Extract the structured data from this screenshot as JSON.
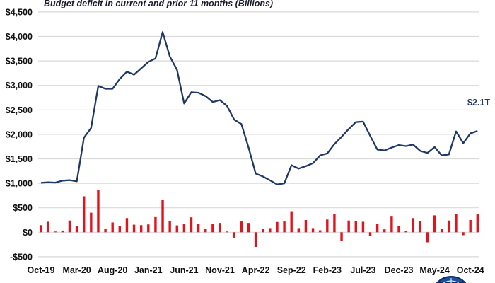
{
  "chart_data": {
    "type": "line+bar",
    "title": "Budget deficit in current and prior 11 months (Billions)",
    "xlabel": "",
    "ylabel": "",
    "ylim": [
      -500,
      4500
    ],
    "yticks": [
      -500,
      0,
      500,
      1000,
      1500,
      2000,
      2500,
      3000,
      3500,
      4000,
      4500
    ],
    "ytick_labels": [
      "-$500",
      "$0",
      "$500",
      "$1,000",
      "$1,500",
      "$2,000",
      "$2,500",
      "$3,000",
      "$3,500",
      "$4,000",
      "$4,500"
    ],
    "grid": true,
    "x_start": "Oct-19",
    "x_end": "Nov-24",
    "xtick_labels": [
      "Oct-19",
      "Mar-20",
      "Aug-20",
      "Jan-21",
      "Jun-21",
      "Nov-21",
      "Apr-22",
      "Sep-22",
      "Feb-23",
      "Jul-23",
      "Dec-23",
      "May-24",
      "Oct-24"
    ],
    "series": [
      {
        "type": "line",
        "color": "#1f3864",
        "values": [
          1010,
          1020,
          1015,
          1055,
          1065,
          1040,
          1930,
          2130,
          2990,
          2930,
          2930,
          3130,
          3280,
          3220,
          3350,
          3480,
          3550,
          4090,
          3590,
          3320,
          2630,
          2860,
          2850,
          2780,
          2660,
          2700,
          2580,
          2300,
          2210,
          1730,
          1200,
          1140,
          1060,
          975,
          1000,
          1370,
          1300,
          1350,
          1410,
          1570,
          1610,
          1800,
          1950,
          2110,
          2250,
          2260,
          1970,
          1690,
          1670,
          1730,
          1780,
          1760,
          1790,
          1660,
          1620,
          1740,
          1570,
          1590,
          2060,
          1820,
          2020,
          2070
        ]
      },
      {
        "type": "bar",
        "color": "#e3121b",
        "values": [
          145,
          215,
          15,
          35,
          240,
          120,
          735,
          400,
          865,
          63,
          200,
          130,
          290,
          155,
          145,
          160,
          310,
          670,
          225,
          140,
          175,
          305,
          165,
          65,
          170,
          190,
          15,
          -110,
          220,
          190,
          -300,
          65,
          85,
          210,
          220,
          430,
          85,
          250,
          85,
          40,
          260,
          375,
          -175,
          240,
          230,
          215,
          -80,
          165,
          60,
          320,
          120,
          20,
          290,
          230,
          -205,
          345,
          65,
          240,
          375,
          -60,
          250,
          365
        ]
      }
    ],
    "annotation": {
      "text": "$2.1T",
      "color": "#1f3864"
    }
  }
}
